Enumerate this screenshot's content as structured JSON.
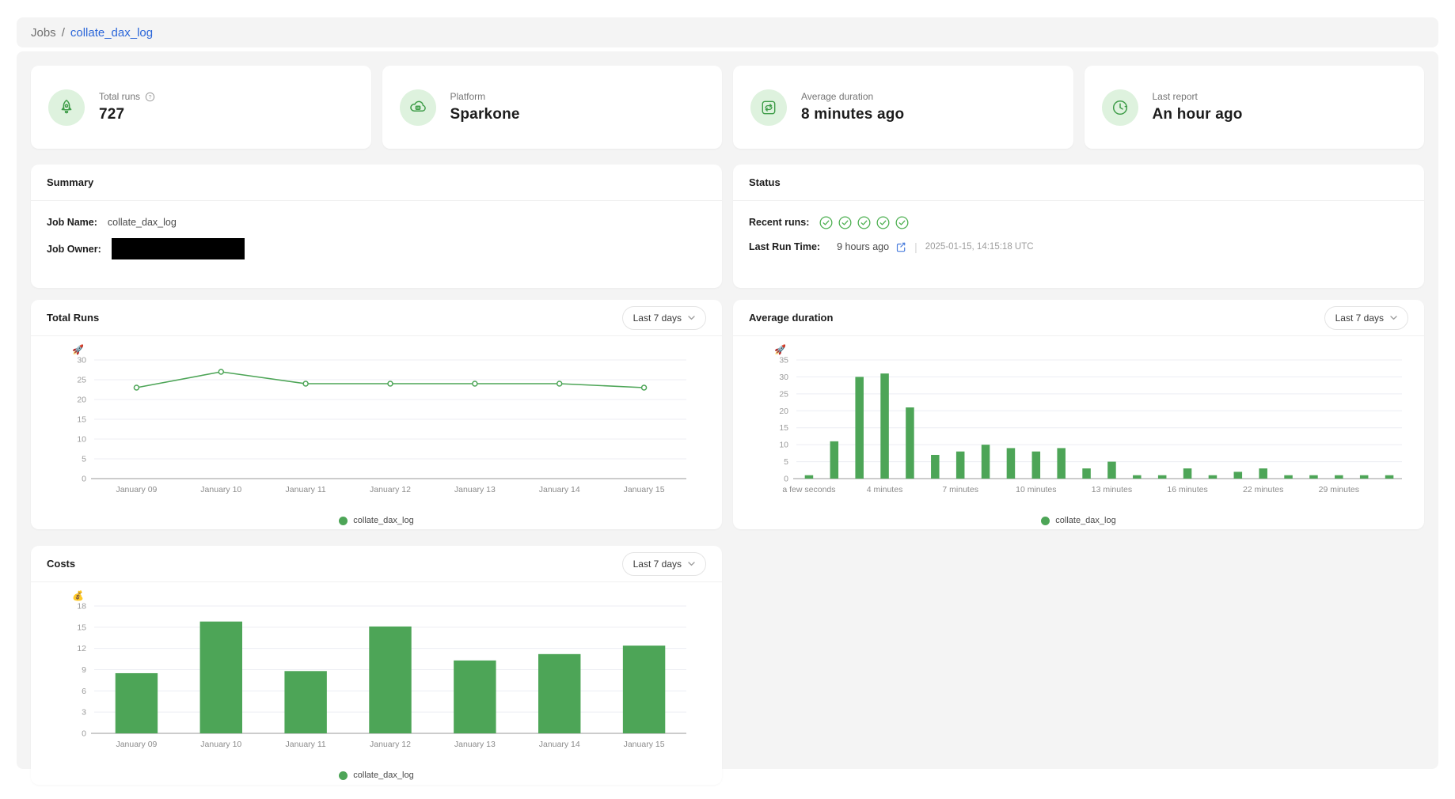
{
  "breadcrumb": {
    "root": "Jobs",
    "separator": "/",
    "current": "collate_dax_log"
  },
  "stat_cards": [
    {
      "icon": "rocket-icon",
      "label": "Total runs",
      "value": "727",
      "has_help_icon": true
    },
    {
      "icon": "platform-cloud-icon",
      "label": "Platform",
      "value": "Sparkone",
      "has_help_icon": false
    },
    {
      "icon": "sync-repeat-icon",
      "label": "Average duration",
      "value": "8 minutes ago",
      "has_help_icon": false
    },
    {
      "icon": "clock-icon",
      "label": "Last report",
      "value": "An hour ago",
      "has_help_icon": false
    }
  ],
  "summary": {
    "title": "Summary",
    "job_name_label": "Job Name:",
    "job_name_value": "collate_dax_log",
    "job_owner_label": "Job Owner:",
    "job_owner_redacted": true
  },
  "status": {
    "title": "Status",
    "recent_runs_label": "Recent runs:",
    "recent_runs_success_count": 5,
    "last_run_label": "Last Run Time:",
    "last_run_relative": "9 hours ago",
    "separator": "|",
    "last_run_timestamp": "2025-01-15, 14:15:18 UTC"
  },
  "filters": {
    "range_label": "Last 7 days"
  },
  "colors": {
    "series_green": "#4da557",
    "icon_green": "#3f9d49",
    "icon_circle_bg": "#def2de",
    "link_blue": "#2b66d9",
    "gridline": "#ecedf3",
    "redacted_black": "#000000"
  },
  "icons": {
    "help": "help-circle-icon",
    "run_status": "check-circle-icon",
    "external_link": "external-link-icon",
    "dropdown": "chevron-down-icon"
  },
  "chart_data": [
    {
      "id": "total-runs",
      "type": "line",
      "title": "Total Runs",
      "x": [
        "January 09",
        "January 10",
        "January 11",
        "January 12",
        "January 13",
        "January 14",
        "January 15"
      ],
      "series": [
        {
          "name": "collate_dax_log",
          "values": [
            23,
            27,
            24,
            24,
            24,
            24,
            23
          ]
        }
      ],
      "ylim": [
        0,
        30
      ],
      "ytick_step": 5,
      "grid": true,
      "legend": [
        "collate_dax_log"
      ],
      "legend_position": "bottom",
      "corner_icon_name": "rocket-emoji",
      "corner_icon_glyph": "🚀"
    },
    {
      "id": "avg-duration",
      "type": "bar",
      "title": "Average duration",
      "categories": [
        "a few seconds",
        "",
        "",
        "4 minutes",
        "",
        "",
        "7 minutes",
        "",
        "",
        "10 minutes",
        "",
        "",
        "13 minutes",
        "",
        "",
        "16 minutes",
        "",
        "",
        "22 minutes",
        "",
        "",
        "29 minutes",
        "",
        ""
      ],
      "values": [
        1,
        11,
        30,
        31,
        21,
        7,
        8,
        10,
        9,
        8,
        9,
        3,
        5,
        1,
        1,
        3,
        1,
        2,
        3,
        1,
        1,
        1,
        1,
        1
      ],
      "ylim": [
        0,
        35
      ],
      "ytick_step": 5,
      "grid": true,
      "legend": [
        "collate_dax_log"
      ],
      "legend_position": "bottom",
      "corner_icon_name": "rocket-emoji",
      "corner_icon_glyph": "🚀"
    },
    {
      "id": "costs",
      "type": "bar",
      "title": "Costs",
      "categories": [
        "January 09",
        "January 10",
        "January 11",
        "January 12",
        "January 13",
        "January 14",
        "January 15"
      ],
      "values": [
        8.5,
        15.8,
        8.8,
        15.1,
        10.3,
        11.2,
        12.4
      ],
      "ylim": [
        0,
        18
      ],
      "ytick_step": 3,
      "grid": true,
      "legend": [
        "collate_dax_log"
      ],
      "legend_position": "bottom",
      "corner_icon_name": "money-bag-emoji",
      "corner_icon_glyph": "💰"
    }
  ]
}
